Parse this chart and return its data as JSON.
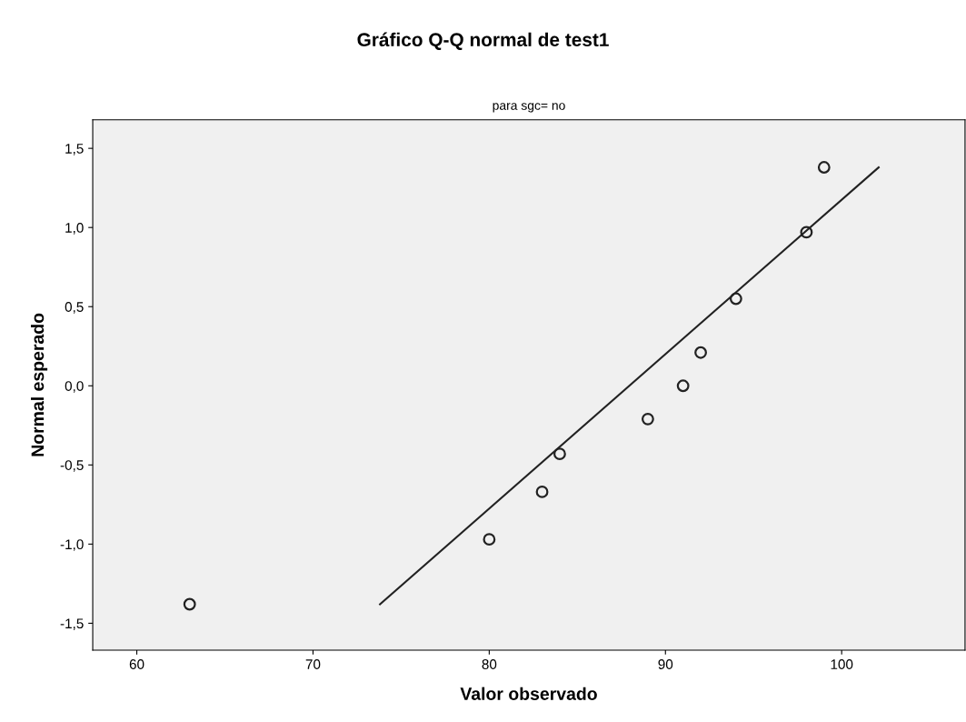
{
  "chart_data": {
    "type": "scatter",
    "title": "Gráfico Q-Q normal de test1",
    "subtitle": "para sgc= no",
    "xlabel": "Valor observado",
    "ylabel": "Normal esperado",
    "x": [
      63,
      80,
      83,
      84,
      89,
      91,
      92,
      94,
      98,
      99
    ],
    "series": [
      {
        "color": "#222222",
        "marker": "circle",
        "values": [
          -1.38,
          -0.97,
          -0.67,
          -0.43,
          -0.21,
          0.0,
          0.21,
          0.55,
          0.97,
          1.38
        ]
      },
      {
        "type": "line",
        "color": "#222222",
        "x": [
          73.8,
          102.1
        ],
        "values": [
          -1.38,
          1.38
        ]
      }
    ],
    "xlim": [
      57.5,
      107
    ],
    "ylim": [
      -1.67,
      1.68
    ],
    "xticks": [
      60,
      70,
      80,
      90,
      100
    ],
    "yticks": [
      {
        "value": 1.5,
        "label": "1,5"
      },
      {
        "value": 1.0,
        "label": "1,0"
      },
      {
        "value": 0.5,
        "label": "0,5"
      },
      {
        "value": 0.0,
        "label": "0,0"
      },
      {
        "value": -0.5,
        "label": "-0,5"
      },
      {
        "value": -1.0,
        "label": "-1,0"
      },
      {
        "value": -1.5,
        "label": "-1,5"
      }
    ],
    "grid": false
  }
}
